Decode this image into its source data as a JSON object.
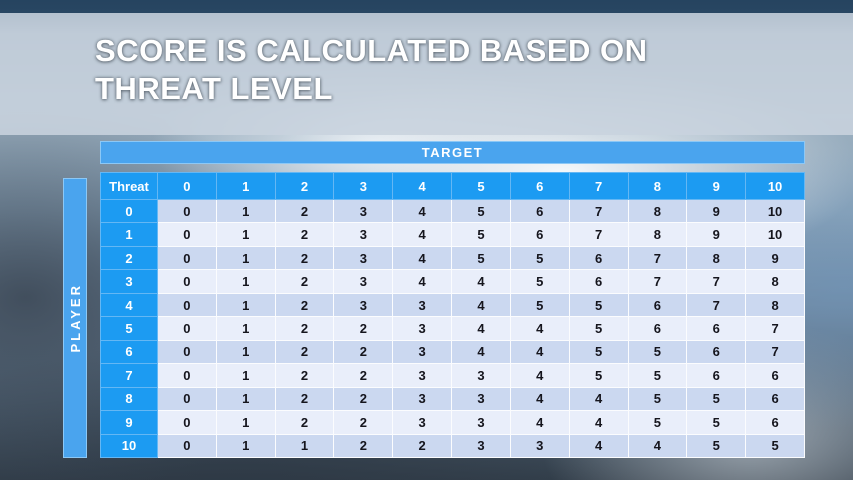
{
  "slide": {
    "title_line1": "SCORE IS CALCULATED BASED ON",
    "title_line2": "THREAT LEVEL"
  },
  "table": {
    "target_label": "TARGET",
    "player_label": "PLAYER",
    "corner_label": "Threat",
    "column_headers": [
      "0",
      "1",
      "2",
      "3",
      "4",
      "5",
      "6",
      "7",
      "8",
      "9",
      "10"
    ],
    "rows": [
      {
        "threat": "0",
        "values": [
          0,
          1,
          2,
          3,
          4,
          5,
          6,
          7,
          8,
          9,
          10
        ]
      },
      {
        "threat": "1",
        "values": [
          0,
          1,
          2,
          3,
          4,
          5,
          6,
          7,
          8,
          9,
          10
        ]
      },
      {
        "threat": "2",
        "values": [
          0,
          1,
          2,
          3,
          4,
          5,
          5,
          6,
          7,
          8,
          9
        ]
      },
      {
        "threat": "3",
        "values": [
          0,
          1,
          2,
          3,
          4,
          4,
          5,
          6,
          7,
          7,
          8
        ]
      },
      {
        "threat": "4",
        "values": [
          0,
          1,
          2,
          3,
          3,
          4,
          5,
          5,
          6,
          7,
          8
        ]
      },
      {
        "threat": "5",
        "values": [
          0,
          1,
          2,
          2,
          3,
          4,
          4,
          5,
          6,
          6,
          7
        ]
      },
      {
        "threat": "6",
        "values": [
          0,
          1,
          2,
          2,
          3,
          4,
          4,
          5,
          5,
          6,
          7
        ]
      },
      {
        "threat": "7",
        "values": [
          0,
          1,
          2,
          2,
          3,
          3,
          4,
          5,
          5,
          6,
          6
        ]
      },
      {
        "threat": "8",
        "values": [
          0,
          1,
          2,
          2,
          3,
          3,
          4,
          4,
          5,
          5,
          6
        ]
      },
      {
        "threat": "9",
        "values": [
          0,
          1,
          2,
          2,
          3,
          3,
          4,
          4,
          5,
          5,
          6
        ]
      },
      {
        "threat": "10",
        "values": [
          0,
          1,
          1,
          2,
          2,
          3,
          3,
          4,
          4,
          5,
          5
        ]
      }
    ]
  },
  "colors": {
    "accent_blue": "#1c9bf2",
    "banner_blue": "#4aa4ee",
    "row_even": "#cbd8f0",
    "row_odd": "#e9eefa",
    "title_text": "#ffffff",
    "title_band": "#c8d3de"
  }
}
